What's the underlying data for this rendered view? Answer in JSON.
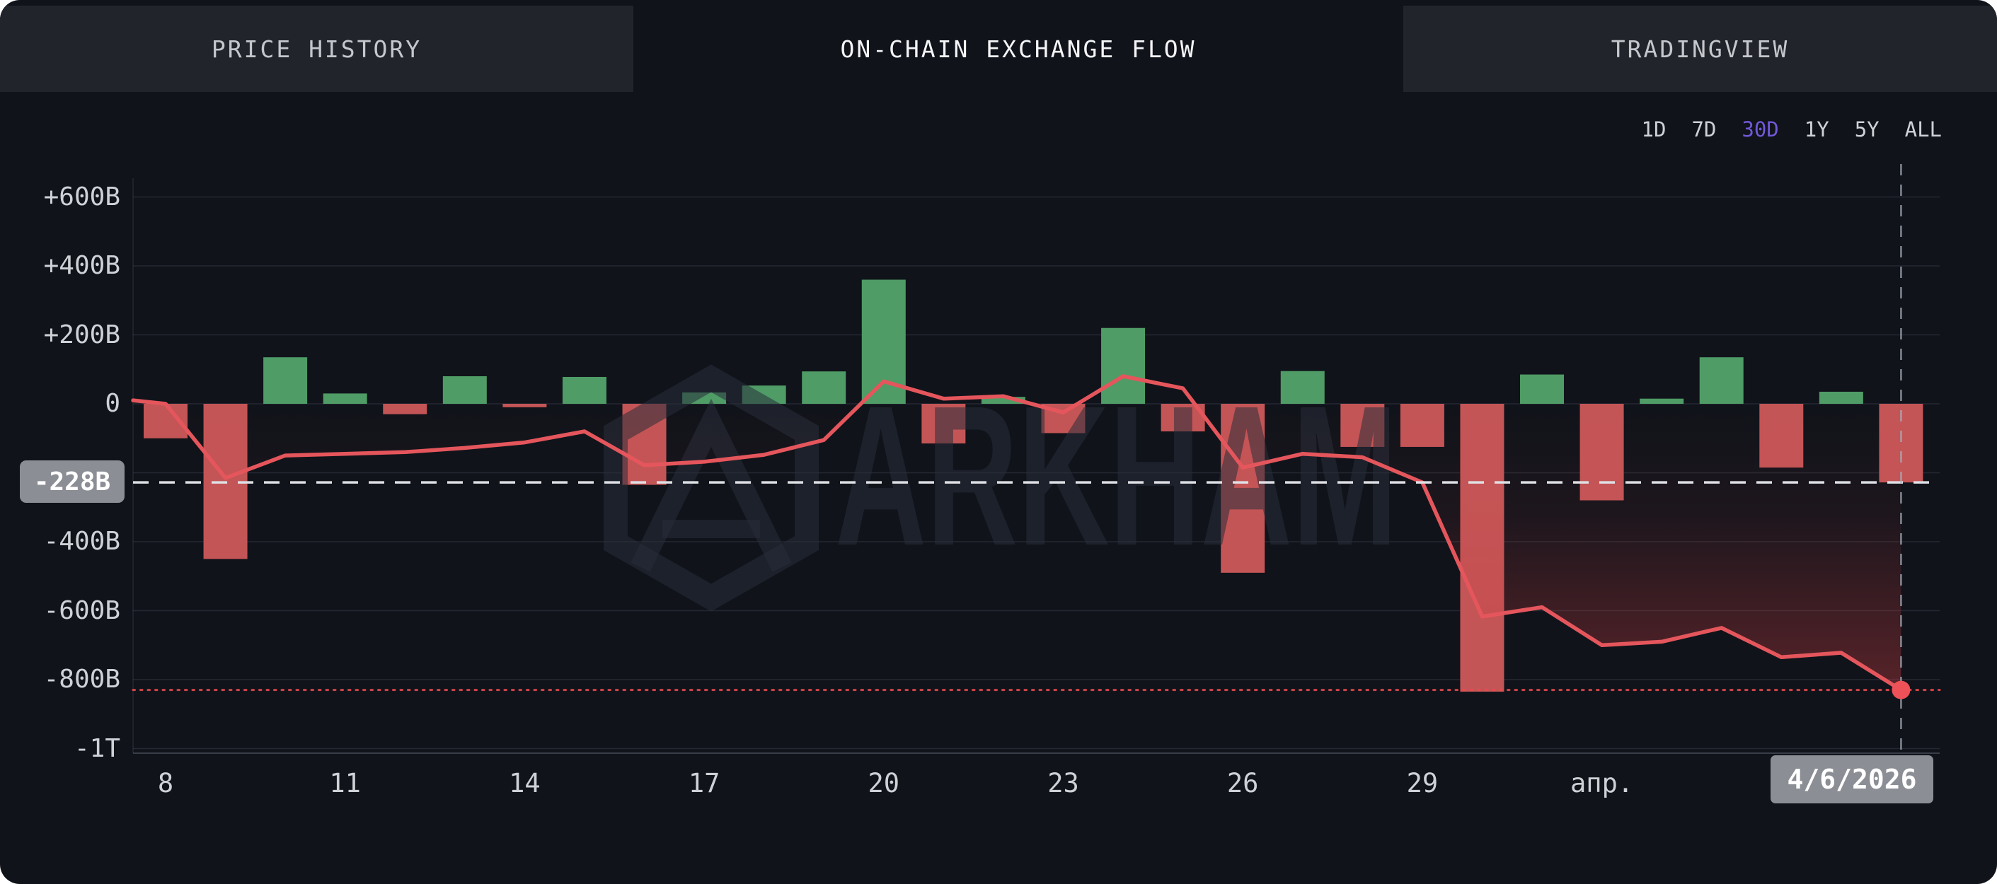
{
  "tabs": [
    {
      "label": "PRICE HISTORY",
      "active": false
    },
    {
      "label": "ON-CHAIN EXCHANGE FLOW",
      "active": true
    },
    {
      "label": "TRADINGVIEW",
      "active": false
    }
  ],
  "timerange": {
    "options": [
      "1D",
      "7D",
      "30D",
      "1Y",
      "5Y",
      "ALL"
    ],
    "selected": "30D"
  },
  "watermark": {
    "text": "ARKHAM"
  },
  "colors": {
    "accent_purple": "#7158d8",
    "green_bar": "#4f9c66",
    "red_bar": "#c45556",
    "line_red": "#e5565c",
    "dot_red": "#ee5157",
    "dashed_white": "#dfe1e5",
    "dotted_red": "rgba(233,74,79,0.9)",
    "badge_bg": "#8b8e94",
    "grid": "rgba(148,158,178,0.16)",
    "axis": "rgba(148,158,178,0.30)",
    "crosshair": "rgba(170,178,190,0.75)",
    "watermark_fill": "rgba(40,46,58,0.55)",
    "haze_base": "rgb(205,62,66)"
  },
  "chart_data": {
    "type": "bar+line",
    "n_points": 30,
    "x_ticks": [
      {
        "i": 0,
        "label": "8"
      },
      {
        "i": 3,
        "label": "11"
      },
      {
        "i": 6,
        "label": "14"
      },
      {
        "i": 9,
        "label": "17"
      },
      {
        "i": 12,
        "label": "20"
      },
      {
        "i": 15,
        "label": "23"
      },
      {
        "i": 18,
        "label": "26"
      },
      {
        "i": 21,
        "label": "29"
      },
      {
        "i": 24,
        "label": "апр."
      }
    ],
    "y_axis": {
      "min": -1000,
      "max": 600,
      "gridline_step": 200,
      "tick_labels": [
        {
          "value": 600,
          "label": "+600B"
        },
        {
          "value": 400,
          "label": "+400B"
        },
        {
          "value": 200,
          "label": "+200B"
        },
        {
          "value": 0,
          "label": "0"
        },
        {
          "value": -400,
          "label": "-400B"
        },
        {
          "value": -600,
          "label": "-600B"
        },
        {
          "value": -800,
          "label": "-800B"
        },
        {
          "value": -1000,
          "label": "-1T"
        }
      ]
    },
    "bar_values_B": [
      -100,
      -450,
      135,
      30,
      -30,
      80,
      -10,
      78,
      -235,
      33,
      53,
      94,
      360,
      -115,
      20,
      -85,
      220,
      -80,
      -490,
      95,
      -125,
      -125,
      -835,
      85,
      -280,
      15,
      135,
      -185,
      35,
      -228
    ],
    "line_B": {
      "lead_in": 10,
      "points": [
        0,
        -215,
        -150,
        -145,
        -140,
        -128,
        -112,
        -80,
        -178,
        -168,
        -148,
        -105,
        65,
        15,
        22,
        -25,
        80,
        45,
        -185,
        -145,
        -155,
        -228,
        -617,
        -590,
        -700,
        -690,
        -650,
        -735,
        -722,
        -830
      ]
    },
    "annotations": {
      "current_flow_value_B": -228,
      "current_flow_label": "-228B",
      "current_line_value_B": -830,
      "date_label": "4/6/2026",
      "crosshair_index": 29
    }
  }
}
